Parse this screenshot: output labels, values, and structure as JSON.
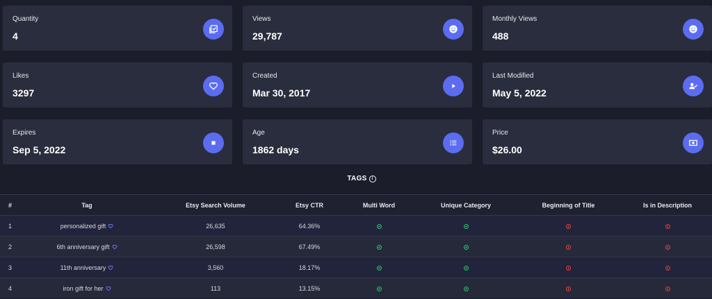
{
  "accent_color": "#5b6cf0",
  "cards": [
    {
      "label": "Quantity",
      "value": "4",
      "icon": "checkbox-stack-icon"
    },
    {
      "label": "Views",
      "value": "29,787",
      "icon": "smile-icon"
    },
    {
      "label": "Monthly Views",
      "value": "488",
      "icon": "smile-icon"
    },
    {
      "label": "Likes",
      "value": "3297",
      "icon": "heart-icon"
    },
    {
      "label": "Created",
      "value": "Mar 30, 2017",
      "icon": "play-icon"
    },
    {
      "label": "Last Modified",
      "value": "May 5, 2022",
      "icon": "user-check-icon"
    },
    {
      "label": "Expires",
      "value": "Sep 5, 2022",
      "icon": "stop-icon"
    },
    {
      "label": "Age",
      "value": "1862 days",
      "icon": "list-icon"
    },
    {
      "label": "Price",
      "value": "$26.00",
      "icon": "money-icon"
    }
  ],
  "tags": {
    "title": "TAGS",
    "columns": [
      "#",
      "Tag",
      "Etsy Search Volume",
      "Etsy CTR",
      "Multi Word",
      "Unique Category",
      "Beginning of Title",
      "Is in Description"
    ],
    "rows": [
      {
        "num": "1",
        "tag": "personalized gift",
        "volume": "26,635",
        "ctr": "64.36%",
        "multi_word": "ok",
        "unique_category": "ok",
        "beginning_of_title": "bad",
        "in_description": "bad"
      },
      {
        "num": "2",
        "tag": "6th anniversary gift",
        "volume": "26,598",
        "ctr": "67.49%",
        "multi_word": "ok",
        "unique_category": "ok",
        "beginning_of_title": "bad",
        "in_description": "bad"
      },
      {
        "num": "3",
        "tag": "11th anniversary",
        "volume": "3,560",
        "ctr": "18.17%",
        "multi_word": "ok",
        "unique_category": "ok",
        "beginning_of_title": "bad",
        "in_description": "bad"
      },
      {
        "num": "4",
        "tag": "iron gift for her",
        "volume": "113",
        "ctr": "13.15%",
        "multi_word": "ok",
        "unique_category": "ok",
        "beginning_of_title": "bad",
        "in_description": "bad"
      }
    ]
  }
}
